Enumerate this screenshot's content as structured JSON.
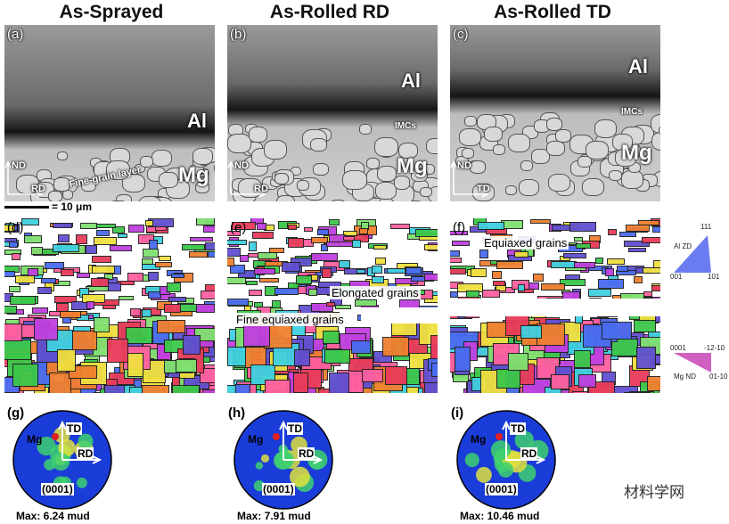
{
  "columns": [
    {
      "title": "As-Sprayed"
    },
    {
      "title": "As-Rolled RD"
    },
    {
      "title": "As-Rolled TD"
    }
  ],
  "micrographs": [
    {
      "label": "(a)",
      "annotations": [
        "Al",
        "Mg",
        "Fine-grain layer"
      ],
      "axes": [
        "ND",
        "RD"
      ]
    },
    {
      "label": "(b)",
      "annotations": [
        "Al",
        "IMCs",
        "Mg"
      ],
      "axes": [
        "ND",
        "RD"
      ]
    },
    {
      "label": "(c)",
      "annotations": [
        "Al",
        "IMCs",
        "Mg"
      ],
      "axes": [
        "ND",
        "TD"
      ]
    }
  ],
  "scale_bar": "= 10 μm",
  "ebsd_maps": [
    {
      "label": "(d)",
      "annotations": []
    },
    {
      "label": "(e)",
      "annotations": [
        "Elongated grains",
        "Fine equiaxed grains"
      ]
    },
    {
      "label": "(f)",
      "annotations": [
        "Equiaxed grains"
      ]
    }
  ],
  "legends": [
    {
      "name": "Al ZD",
      "corners": [
        "111",
        "001",
        "101"
      ]
    },
    {
      "name": "Mg ND",
      "corners": [
        "0001",
        "-12-10",
        "01-10"
      ]
    }
  ],
  "pole_figures": [
    {
      "label": "(g)",
      "phase": "Mg",
      "axes": [
        "TD",
        "RD"
      ],
      "plane": "(0001)",
      "max": "Max: 6.24 mud"
    },
    {
      "label": "(h)",
      "phase": "Mg",
      "axes": [
        "TD",
        "RD"
      ],
      "plane": "(0001)",
      "max": "Max: 7.91 mud"
    },
    {
      "label": "(i)",
      "phase": "Mg",
      "axes": [
        "TD",
        "RD"
      ],
      "plane": "(0001)",
      "max": "Max: 10.46 mud"
    }
  ],
  "watermark": "材料学网"
}
